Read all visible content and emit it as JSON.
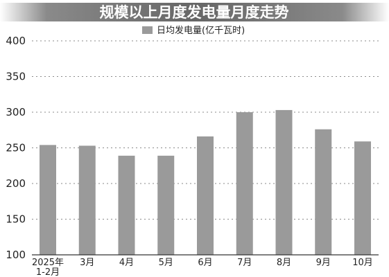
{
  "chart_data": {
    "type": "bar",
    "title": "规模以上月度发电量月度走势",
    "legend": [
      "日均发电量(亿千瓦时)"
    ],
    "legend_position": "top-center",
    "categories": [
      "2025年\n1-2月",
      "3月",
      "4月",
      "5月",
      "6月",
      "7月",
      "8月",
      "9月",
      "10月"
    ],
    "series": [
      {
        "name": "日均发电量(亿千瓦时)",
        "values": [
          254,
          253,
          239,
          239,
          266,
          300,
          303,
          276,
          259
        ]
      }
    ],
    "y_ticks": [
      100,
      150,
      200,
      250,
      300,
      350,
      400
    ],
    "ylim": [
      100,
      400
    ],
    "grid": true,
    "colors": {
      "bar": "#9a9a9a",
      "title_bg": "#6e6e6e",
      "grid": "#8a8a8a",
      "axis": "#333333"
    }
  }
}
